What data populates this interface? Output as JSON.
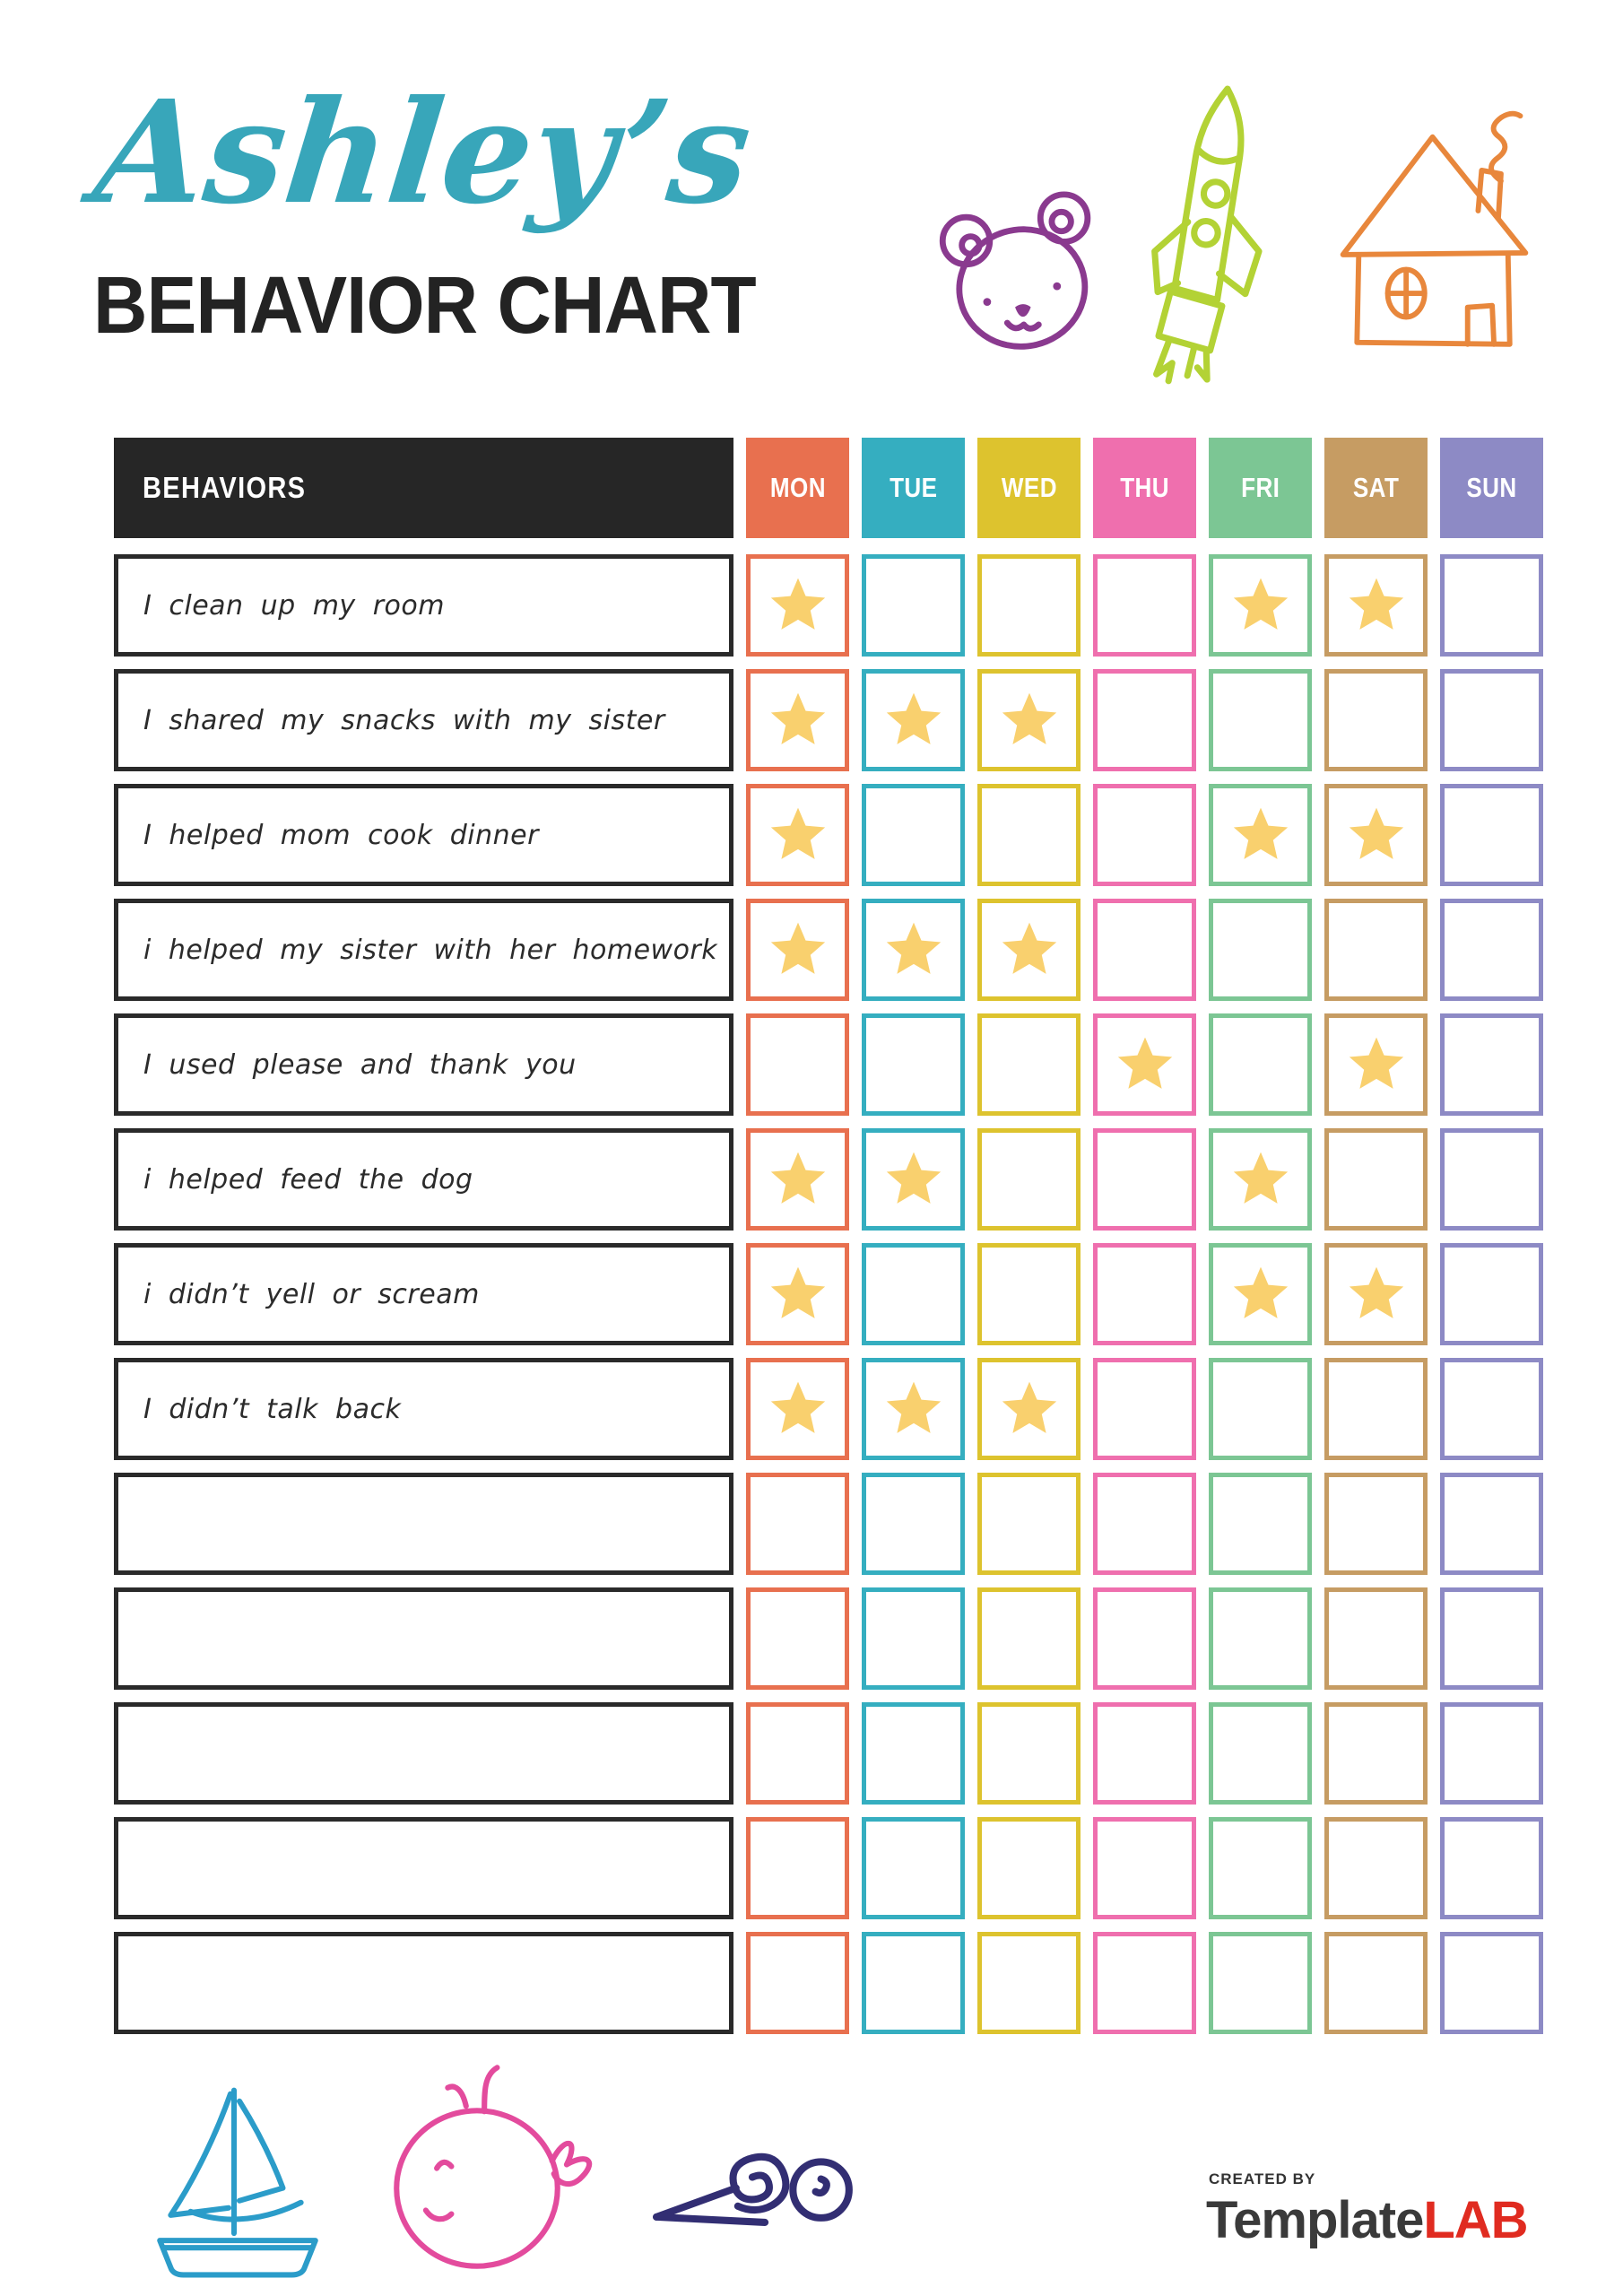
{
  "header": {
    "name_script": "Ashley’s",
    "title": "BEHAVIOR CHART",
    "name_color": "#38a6ba"
  },
  "icons": {
    "top": [
      {
        "name": "bear-icon",
        "color": "#8a3a8f"
      },
      {
        "name": "rocket-icon",
        "color": "#b3d235"
      },
      {
        "name": "house-icon",
        "color": "#e8873c"
      }
    ],
    "bottom": [
      {
        "name": "sailboat-icon",
        "color": "#2b9cc9"
      },
      {
        "name": "whale-icon",
        "color": "#e34b9d"
      },
      {
        "name": "snail-icon",
        "color": "#322e73"
      }
    ]
  },
  "table": {
    "behaviors_header": "BEHAVIORS",
    "header_bg": "#262626",
    "star_color": "#f9d06e",
    "star_icon": "star-icon",
    "days": [
      {
        "label": "MON",
        "color": "#e8704f"
      },
      {
        "label": "TUE",
        "color": "#35aec0"
      },
      {
        "label": "WED",
        "color": "#ddc32e"
      },
      {
        "label": "THU",
        "color": "#ef6fae"
      },
      {
        "label": "FRI",
        "color": "#7cc694"
      },
      {
        "label": "SAT",
        "color": "#c69c63"
      },
      {
        "label": "SUN",
        "color": "#8d8ac5"
      }
    ],
    "rows": [
      {
        "behavior": "I clean up my room",
        "stars": [
          "MON",
          "FRI",
          "SAT"
        ]
      },
      {
        "behavior": "I shared my snacks with my sister",
        "stars": [
          "MON",
          "TUE",
          "WED"
        ]
      },
      {
        "behavior": "I helped mom cook dinner",
        "stars": [
          "MON",
          "FRI",
          "SAT"
        ]
      },
      {
        "behavior": "i helped my sister with her homework",
        "stars": [
          "MON",
          "TUE",
          "WED"
        ]
      },
      {
        "behavior": "I used please and thank you",
        "stars": [
          "THU",
          "SAT"
        ]
      },
      {
        "behavior": "i helped feed the dog",
        "stars": [
          "MON",
          "TUE",
          "FRI"
        ]
      },
      {
        "behavior": "i didn’t yell or scream",
        "stars": [
          "MON",
          "FRI",
          "SAT"
        ]
      },
      {
        "behavior": "I didn’t talk back",
        "stars": [
          "MON",
          "TUE",
          "WED"
        ]
      },
      {
        "behavior": "",
        "stars": []
      },
      {
        "behavior": "",
        "stars": []
      },
      {
        "behavior": "",
        "stars": []
      },
      {
        "behavior": "",
        "stars": []
      },
      {
        "behavior": "",
        "stars": []
      }
    ]
  },
  "footer": {
    "created_by": "CREATED BY",
    "brand_dark": "Template",
    "brand_red": "LAB",
    "brand_red_color": "#e02b20"
  }
}
